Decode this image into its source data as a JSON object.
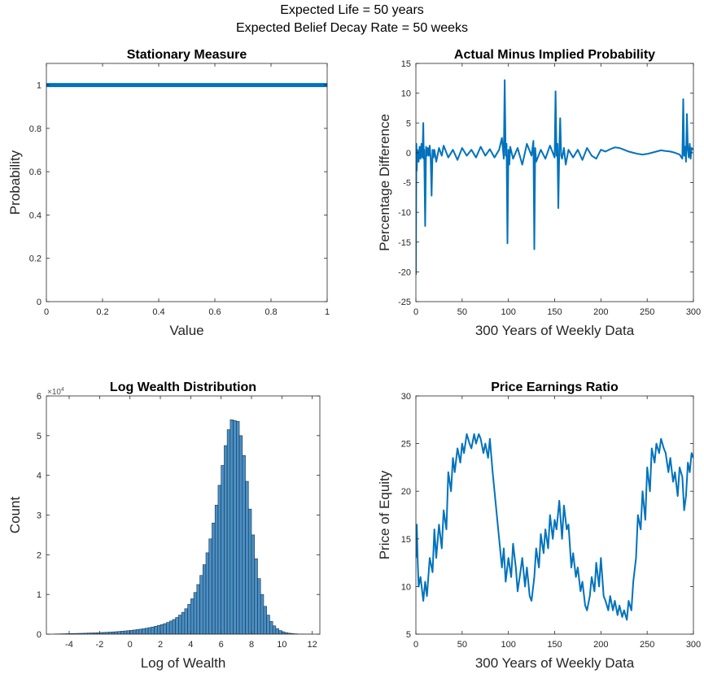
{
  "figure": {
    "suptitle_line1": "Expected Life = 50 years",
    "suptitle_line2": "Expected Belief Decay Rate = 50 weeks"
  },
  "colors": {
    "series": "#0072BD",
    "hist_face": "#4a8fc4",
    "hist_edge": "#16344f",
    "axis": "#262626"
  },
  "chart_data": [
    {
      "id": "stationary",
      "type": "line",
      "title": "Stationary Measure",
      "xlabel": "Value",
      "ylabel": "Probability",
      "xlim": [
        0,
        1
      ],
      "ylim": [
        0,
        1.1
      ],
      "xticks": [
        0,
        0.2,
        0.4,
        0.6,
        0.8,
        1
      ],
      "xtick_labels": [
        "0",
        "0.2",
        "0.4",
        "0.6",
        "0.8",
        "1"
      ],
      "yticks": [
        0,
        0.2,
        0.4,
        0.6,
        0.8,
        1
      ],
      "ytick_labels": [
        "0",
        "0.2",
        "0.4",
        "0.6",
        "0.8",
        "1"
      ],
      "grid": false,
      "series": [
        {
          "x": [
            0,
            1
          ],
          "y": [
            1,
            1
          ]
        }
      ]
    },
    {
      "id": "actual-minus-implied",
      "type": "line",
      "title": "Actual Minus Implied Probability",
      "xlabel": "300 Years of Weekly Data",
      "ylabel": "Percentage Difference",
      "xlim": [
        0,
        300
      ],
      "ylim": [
        -25,
        15
      ],
      "xticks": [
        0,
        50,
        100,
        150,
        200,
        250,
        300
      ],
      "xtick_labels": [
        "0",
        "50",
        "100",
        "150",
        "200",
        "250",
        "300"
      ],
      "yticks": [
        -25,
        -20,
        -15,
        -10,
        -5,
        0,
        5,
        10,
        15
      ],
      "ytick_labels": [
        "-25",
        "-20",
        "-15",
        "-10",
        "-5",
        "0",
        "5",
        "10",
        "15"
      ],
      "grid": false,
      "series": [
        {
          "x": [
            0,
            0.5,
            1,
            1.5,
            2,
            3,
            4,
            5,
            6,
            7,
            8,
            8.5,
            9,
            10,
            11,
            12,
            13,
            14,
            15,
            16,
            17,
            18,
            19,
            20,
            22,
            25,
            28,
            30,
            35,
            40,
            45,
            50,
            55,
            60,
            65,
            70,
            75,
            80,
            85,
            90,
            93,
            95,
            96,
            97,
            98,
            99,
            100,
            101,
            102,
            105,
            110,
            115,
            120,
            125,
            127,
            128,
            129,
            130,
            135,
            140,
            145,
            150,
            151,
            152,
            153,
            154,
            155,
            156,
            157,
            158,
            160,
            162,
            165,
            170,
            175,
            180,
            185,
            190,
            195,
            200,
            205,
            210,
            215,
            220,
            225,
            230,
            235,
            240,
            245,
            250,
            255,
            260,
            265,
            270,
            275,
            280,
            285,
            288,
            289,
            290,
            291,
            292,
            293,
            294,
            295,
            296,
            297,
            298,
            300
          ],
          "y": [
            -20.5,
            1.5,
            -3,
            0.5,
            0.3,
            -1.5,
            1,
            -1,
            1.5,
            -0.8,
            5,
            -1,
            0.5,
            -12.3,
            1,
            -0.5,
            0.8,
            -0.5,
            1.2,
            -1,
            -7.2,
            0.5,
            -0.8,
            0.5,
            -1.5,
            0.8,
            -0.5,
            1.2,
            -0.8,
            0.5,
            -1.2,
            0.8,
            -0.5,
            0.5,
            -0.8,
            1,
            -0.5,
            0.6,
            -0.8,
            0.5,
            2.5,
            -1,
            12.2,
            -0.5,
            1.5,
            -15.2,
            0.5,
            -2,
            1,
            -1,
            0.8,
            -2,
            1.5,
            -0.5,
            2,
            -16.2,
            0.8,
            -1.5,
            0.5,
            -1,
            1.2,
            -0.8,
            10.3,
            -0.5,
            1.5,
            -9.3,
            0.5,
            5.8,
            -0.5,
            -1,
            0.8,
            -2,
            0.5,
            -0.8,
            0.5,
            -1.2,
            0.8,
            -0.5,
            -1,
            0.5,
            0.2,
            0.6,
            0.9,
            0.8,
            0.5,
            0.2,
            0,
            -0.2,
            -0.3,
            -0.2,
            0,
            0.2,
            0.4,
            0.3,
            0.2,
            0,
            -0.3,
            -1,
            9,
            -0.5,
            1,
            -1.5,
            6.5,
            0.5,
            -0.8,
            1.5,
            -1,
            0.8,
            0.5
          ]
        }
      ]
    },
    {
      "id": "log-wealth",
      "type": "bar",
      "title": "Log Wealth Distribution",
      "xlabel": "Log of Wealth",
      "ylabel": "Count",
      "y_exponent_label": "×10",
      "y_exponent": "4",
      "xlim": [
        -5.5,
        12.5
      ],
      "ylim": [
        0,
        60000
      ],
      "xticks": [
        -4,
        -2,
        0,
        2,
        4,
        6,
        8,
        10,
        12
      ],
      "xtick_labels": [
        "-4",
        "-2",
        "0",
        "2",
        "4",
        "6",
        "8",
        "10",
        "12"
      ],
      "yticks": [
        0,
        10000,
        20000,
        30000,
        40000,
        50000,
        60000
      ],
      "ytick_labels": [
        "0",
        "1",
        "2",
        "3",
        "4",
        "5",
        "6"
      ],
      "grid": false,
      "bin_edges_start": -5.0,
      "bin_width": 0.2,
      "counts": [
        50,
        60,
        80,
        100,
        120,
        140,
        160,
        180,
        200,
        220,
        250,
        280,
        300,
        330,
        360,
        400,
        440,
        480,
        520,
        570,
        620,
        680,
        740,
        810,
        880,
        960,
        1050,
        1150,
        1250,
        1360,
        1500,
        1650,
        1800,
        1980,
        2180,
        2400,
        2650,
        2950,
        3300,
        3700,
        4200,
        4800,
        5500,
        6400,
        7500,
        8900,
        10500,
        12500,
        14800,
        17500,
        20500,
        24000,
        28000,
        32500,
        37500,
        42500,
        47500,
        51500,
        54000,
        53800,
        53600,
        50000,
        45000,
        38500,
        31500,
        25000,
        19000,
        14000,
        10000,
        7000,
        4800,
        3200,
        2100,
        1400,
        900,
        600,
        380,
        240,
        150,
        90,
        50,
        30,
        20,
        10,
        6
      ]
    },
    {
      "id": "price-earnings",
      "type": "line",
      "title": "Price Earnings Ratio",
      "xlabel": "300 Years of Weekly Data",
      "ylabel": "Price of Equity",
      "xlim": [
        0,
        300
      ],
      "ylim": [
        5,
        30
      ],
      "xticks": [
        0,
        50,
        100,
        150,
        200,
        250,
        300
      ],
      "xtick_labels": [
        "0",
        "50",
        "100",
        "150",
        "200",
        "250",
        "300"
      ],
      "yticks": [
        5,
        10,
        15,
        20,
        25,
        30
      ],
      "ytick_labels": [
        "5",
        "10",
        "15",
        "20",
        "25",
        "30"
      ],
      "grid": false,
      "series": [
        {
          "x": [
            0,
            1,
            2,
            3,
            5,
            8,
            10,
            12,
            15,
            18,
            20,
            22,
            25,
            28,
            30,
            33,
            35,
            38,
            40,
            42,
            45,
            48,
            50,
            52,
            55,
            58,
            60,
            63,
            65,
            68,
            70,
            73,
            75,
            78,
            80,
            83,
            85,
            88,
            90,
            93,
            95,
            97,
            100,
            103,
            105,
            108,
            110,
            113,
            115,
            118,
            120,
            123,
            125,
            128,
            130,
            133,
            135,
            138,
            140,
            143,
            145,
            148,
            150,
            152,
            155,
            158,
            160,
            163,
            165,
            168,
            170,
            173,
            175,
            178,
            180,
            183,
            185,
            188,
            190,
            193,
            195,
            198,
            200,
            203,
            205,
            208,
            210,
            213,
            215,
            218,
            220,
            223,
            225,
            228,
            230,
            233,
            235,
            238,
            240,
            243,
            245,
            248,
            250,
            253,
            255,
            258,
            260,
            263,
            265,
            268,
            270,
            273,
            275,
            278,
            280,
            283,
            285,
            288,
            290,
            292,
            294,
            296,
            298,
            300
          ],
          "y": [
            13,
            16.5,
            12.5,
            10,
            11,
            8.5,
            10.5,
            9,
            13,
            11.5,
            16,
            13,
            16.5,
            14,
            18,
            16,
            22,
            20,
            23.5,
            22,
            24.5,
            23,
            25,
            24,
            26,
            25,
            24.5,
            26,
            25,
            26,
            25.5,
            24,
            25,
            23.5,
            25.5,
            22,
            20,
            17,
            15,
            12,
            14,
            10.5,
            13,
            11,
            14.5,
            12,
            9.5,
            11.5,
            13,
            10,
            12,
            9,
            8.5,
            11,
            14,
            12,
            15.5,
            13.5,
            16,
            14,
            17.5,
            15,
            17,
            16,
            19,
            15,
            18.5,
            16,
            16.5,
            12,
            13.5,
            11,
            12,
            9.5,
            10.5,
            8,
            7.5,
            9,
            11,
            9.5,
            12.5,
            10,
            13,
            9,
            8.5,
            7.5,
            9,
            7.5,
            8.5,
            7,
            8,
            6.8,
            7.5,
            6.5,
            8.5,
            7.5,
            10.5,
            13,
            17.5,
            16,
            20,
            17,
            22.5,
            20,
            24.5,
            23,
            25,
            24,
            25.5,
            24.5,
            24,
            22,
            23.5,
            21,
            22,
            19.5,
            22.5,
            21.5,
            18,
            19.5,
            23,
            22,
            24,
            23.5
          ]
        }
      ]
    }
  ]
}
